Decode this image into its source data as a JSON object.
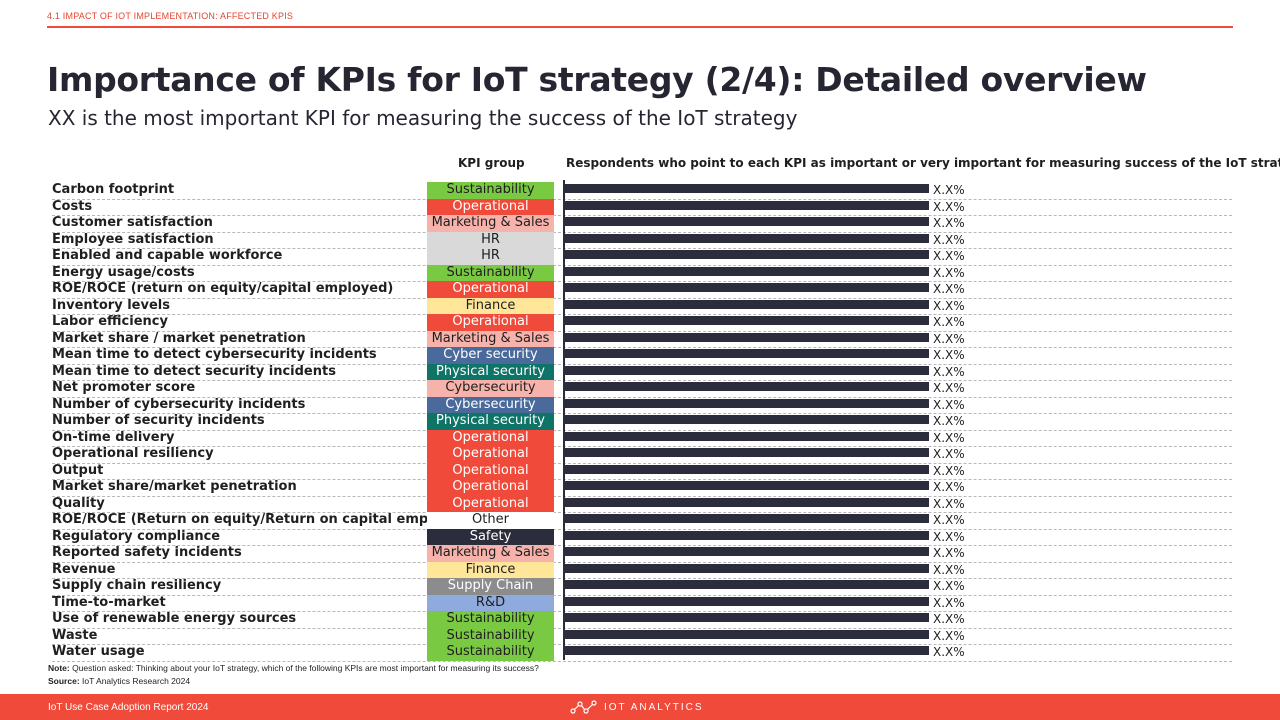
{
  "header": {
    "section_label": "4.1 IMPACT OF IOT IMPLEMENTATION: AFFECTED KPIS",
    "title": "Importance of KPIs for IoT strategy (2/4): Detailed overview",
    "subtitle": "XX is the most important KPI for measuring the success of the IoT strategy"
  },
  "columns": {
    "kpi_group": "KPI group",
    "respondents": "Respondents who point to each KPI as important or very important for measuring success of the IoT strategy"
  },
  "group_colors": {
    "Sustainability": {
      "bg": "#7ac943",
      "fg": "#1f1f1f"
    },
    "Operational": {
      "bg": "#f04b3a",
      "fg": "#ffffff"
    },
    "Marketing & Sales": {
      "bg": "#f7b3ab",
      "fg": "#1f1f1f"
    },
    "HR": {
      "bg": "#d9d9d9",
      "fg": "#1f1f1f"
    },
    "Finance": {
      "bg": "#ffe699",
      "fg": "#1f1f1f"
    },
    "Cyber security": {
      "bg": "#4a6a9b",
      "fg": "#ffffff"
    },
    "Physical security": {
      "bg": "#0f7468",
      "fg": "#ffffff"
    },
    "Cybersecurity_light": {
      "bg": "#f7b3ab",
      "fg": "#1f1f1f"
    },
    "Cybersecurity_dark": {
      "bg": "#4a6a9b",
      "fg": "#ffffff"
    },
    "Other": {
      "bg": "#ffffff",
      "fg": "#1f1f1f"
    },
    "Safety": {
      "bg": "#2b2d3c",
      "fg": "#ffffff"
    },
    "Supply Chain": {
      "bg": "#8c8c8c",
      "fg": "#ffffff"
    },
    "R&D": {
      "bg": "#8faadc",
      "fg": "#1f1f1f"
    }
  },
  "chart_data": {
    "type": "bar",
    "orientation": "horizontal",
    "categories": [
      "Carbon footprint",
      "Costs",
      "Customer satisfaction",
      "Employee satisfaction",
      "Enabled and capable workforce",
      "Energy usage/costs",
      "ROE/ROCE (return on equity/capital employed)",
      "Inventory levels",
      "Labor efficiency",
      "Market share / market penetration",
      "Mean time to detect cybersecurity incidents",
      "Mean time to detect security incidents",
      "Net promoter score",
      "Number of cybersecurity incidents",
      "Number of security incidents",
      "On-time delivery",
      "Operational resiliency",
      "Output",
      "Market share/market penetration",
      "Quality",
      "ROE/ROCE (Return on equity/Return on capital employed)",
      "Regulatory compliance",
      "Reported safety incidents",
      "Revenue",
      "Supply chain resiliency",
      "Time-to-market",
      "Use of renewable energy sources",
      "Waste",
      "Water usage"
    ],
    "groups": [
      "Sustainability",
      "Operational",
      "Marketing & Sales",
      "HR",
      "HR",
      "Sustainability",
      "Operational",
      "Finance",
      "Operational",
      "Marketing & Sales",
      "Cyber security",
      "Physical security",
      "Cybersecurity",
      "Cybersecurity",
      "Physical security",
      "Operational",
      "Operational",
      "Operational",
      "Operational",
      "Operational",
      "Other",
      "Safety",
      "Marketing & Sales",
      "Finance",
      "Supply Chain",
      "R&D",
      "Sustainability",
      "Sustainability",
      "Sustainability"
    ],
    "group_color_keys": [
      "Sustainability",
      "Operational",
      "Marketing & Sales",
      "HR",
      "HR",
      "Sustainability",
      "Operational",
      "Finance",
      "Operational",
      "Marketing & Sales",
      "Cyber security",
      "Physical security",
      "Cybersecurity_light",
      "Cybersecurity_dark",
      "Physical security",
      "Operational",
      "Operational",
      "Operational",
      "Operational",
      "Operational",
      "Other",
      "Safety",
      "Marketing & Sales",
      "Finance",
      "Supply Chain",
      "R&D",
      "Sustainability",
      "Sustainability",
      "Sustainability"
    ],
    "values": [
      1,
      1,
      1,
      1,
      1,
      1,
      1,
      1,
      1,
      1,
      1,
      1,
      1,
      1,
      1,
      1,
      1,
      1,
      1,
      1,
      1,
      1,
      1,
      1,
      1,
      1,
      1,
      1,
      1
    ],
    "value_labels": [
      "X.X%",
      "X.X%",
      "X.X%",
      "X.X%",
      "X.X%",
      "X.X%",
      "X.X%",
      "X.X%",
      "X.X%",
      "X.X%",
      "X.X%",
      "X.X%",
      "X.X%",
      "X.X%",
      "X.X%",
      "X.X%",
      "X.X%",
      "X.X%",
      "X.X%",
      "X.X%",
      "X.X%",
      "X.X%",
      "X.X%",
      "X.X%",
      "X.X%",
      "X.X%",
      "X.X%",
      "X.X%",
      "X.X%"
    ],
    "xlim": [
      0,
      1
    ],
    "bar_color": "#2b2d3c"
  },
  "notes": {
    "note_label": "Note:",
    "note_text": " Question asked: Thinking about your IoT strategy, which of the following KPIs are most important for measuring its success?",
    "source_label": "Source:",
    "source_text": " IoT Analytics Research 2024"
  },
  "footer": {
    "report": "IoT Use Case Adoption Report 2024",
    "logo_text": "IOT ANALYTICS"
  }
}
